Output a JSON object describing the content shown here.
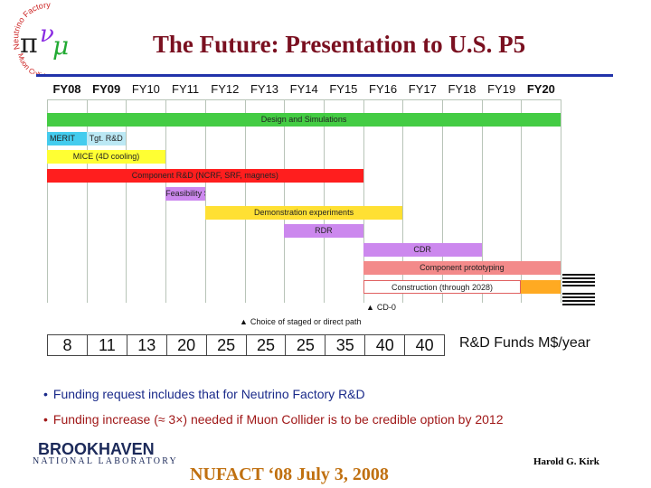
{
  "title": "The Future: Presentation to U.S.  P5",
  "logo": {
    "line1": "Neutrino Factory",
    "line2": "Muon Collider",
    "icon": "pi-nu-mu-logo"
  },
  "timeline": {
    "years": [
      "FY08",
      "FY09",
      "FY10",
      "FY11",
      "FY12",
      "FY13",
      "FY14",
      "FY15",
      "FY16",
      "FY17",
      "FY18",
      "FY19",
      "FY20"
    ],
    "bold_years": [
      "FY08",
      "FY09",
      "FY20"
    ],
    "bars": [
      {
        "label": "Design and Simulations",
        "start": 0,
        "end": 13,
        "color": "#44cc44"
      },
      {
        "label": "MERIT",
        "start": 0,
        "end": 1,
        "color": "#44ccee"
      },
      {
        "label": "Tgt. R&D",
        "start": 1,
        "end": 2,
        "color": "#bbe8f4"
      },
      {
        "label": "MICE (4D cooling)",
        "start": 0,
        "end": 3,
        "color": "#ffff33"
      },
      {
        "label": "Component R&D (NCRF, SRF, magnets)",
        "start": 0,
        "end": 8,
        "color": "#ff1e1e"
      },
      {
        "label": "Feasibility Study",
        "start": 3,
        "end": 4,
        "color": "#cc88ee"
      },
      {
        "label": "Demonstration experiments",
        "start": 4,
        "end": 9,
        "color": "#ffe033"
      },
      {
        "label": "RDR",
        "start": 6,
        "end": 8,
        "color": "#cc88ee"
      },
      {
        "label": "CDR",
        "start": 8,
        "end": 11,
        "color": "#cc88ee"
      },
      {
        "label": "Component prototyping",
        "start": 8,
        "end": 13,
        "color": "#f38a8a"
      },
      {
        "label": "Construction (through 2028)",
        "start": 8,
        "end": 12,
        "color": "#ffffff"
      },
      {
        "label": "",
        "start": 12,
        "end": 13,
        "color": "#ffaa22"
      }
    ],
    "milestones": {
      "cd0": "CD-0",
      "staged": "Choice of staged or direct path"
    }
  },
  "funding": {
    "values": [
      "8",
      "11",
      "13",
      "20",
      "25",
      "25",
      "25",
      "35",
      "40",
      "40"
    ],
    "label": "R&D Funds  M$/year"
  },
  "bullets": [
    "Funding request includes that for Neutrino Factory R&D",
    "Funding increase (≈ 3×) needed if Muon Collider is to be credible option by 2012"
  ],
  "lab": {
    "line1": "BROOKHAVEN",
    "line2": "NATIONAL LABORATORY"
  },
  "footer": "NUFACT ‘08 July 3, 2008",
  "author": "Harold G. Kirk"
}
